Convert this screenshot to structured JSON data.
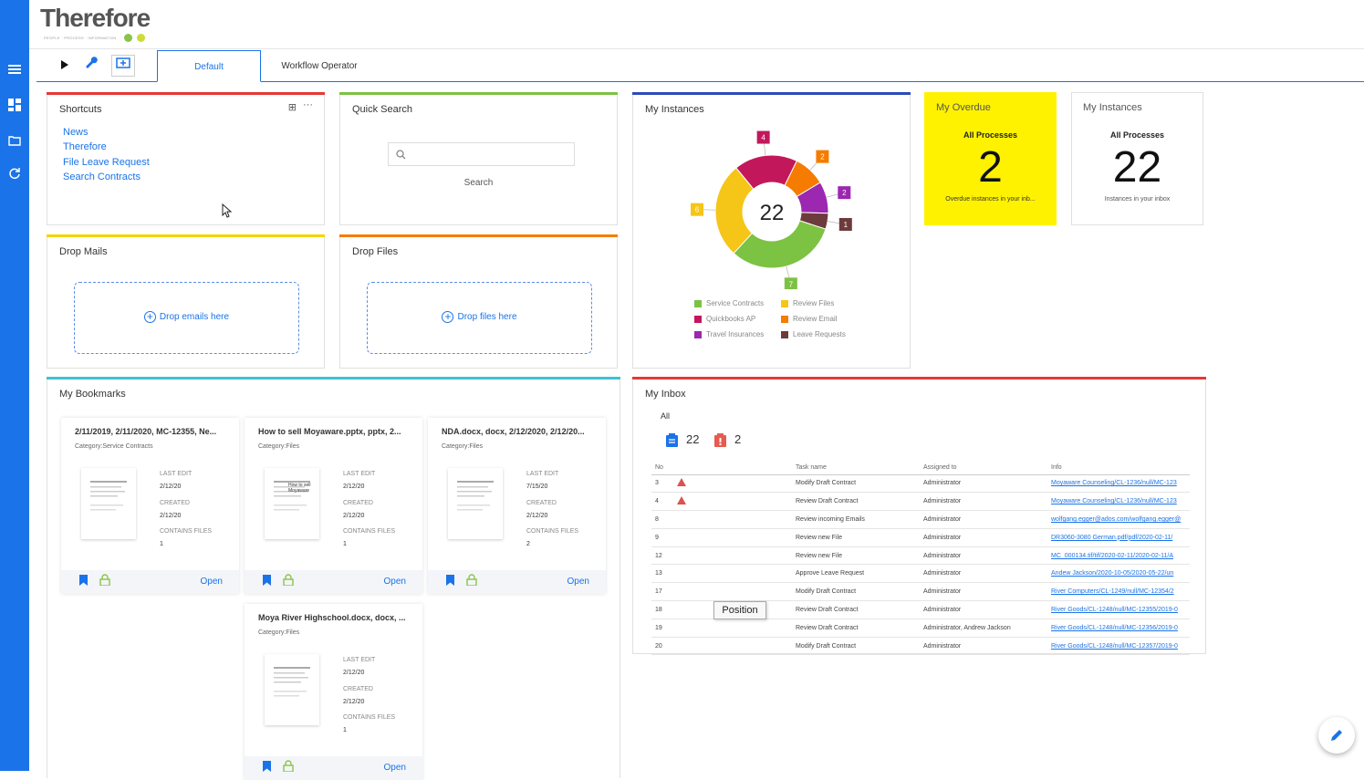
{
  "app": {
    "logo_text": "Therefore",
    "logo_tagline": "PEOPLE · PROCESS · INFORMATION"
  },
  "rail": {
    "icons": [
      "menu-icon",
      "dashboard-icon",
      "folder-icon",
      "refresh-icon"
    ]
  },
  "toolbar": {
    "icons": [
      "play-icon",
      "wrench-icon",
      "add-screen-icon"
    ],
    "tabs": [
      {
        "label": "Default",
        "active": true
      },
      {
        "label": "Workflow Operator",
        "active": false
      }
    ]
  },
  "shortcuts": {
    "title": "Shortcuts",
    "links": [
      "News",
      "Therefore",
      "File Leave Request",
      "Search Contracts"
    ],
    "accent": "#e53935"
  },
  "quick_search": {
    "title": "Quick Search",
    "placeholder": "",
    "button_label": "Search",
    "accent": "#7cc243"
  },
  "my_instances_chart": {
    "title": "My Instances",
    "total": "22",
    "accent": "#2b4bb8"
  },
  "chart_data": {
    "type": "pie",
    "center_label": "22",
    "series": [
      {
        "name": "Service Contracts",
        "value": 7,
        "color": "#7cc243"
      },
      {
        "name": "Review Files",
        "value": 6,
        "color": "#f5c518"
      },
      {
        "name": "Quickbooks AP",
        "value": 4,
        "color": "#c2185b"
      },
      {
        "name": "Review Email",
        "value": 2,
        "color": "#f57c00"
      },
      {
        "name": "Travel Insurances",
        "value": 2,
        "color": "#9c27b0"
      },
      {
        "name": "Leave Requests",
        "value": 1,
        "color": "#6d3b3b"
      }
    ]
  },
  "my_overdue": {
    "title": "My Overdue",
    "subtitle": "All Processes",
    "count": "2",
    "caption": "Overdue instances in your inb...",
    "bg": "#fff200"
  },
  "my_instances_tile": {
    "title": "My Instances",
    "subtitle": "All Processes",
    "count": "22",
    "caption": "Instances in your inbox"
  },
  "drop_mails": {
    "title": "Drop Mails",
    "label": "Drop emails here",
    "accent": "#f5d300"
  },
  "drop_files": {
    "title": "Drop Files",
    "label": "Drop files here",
    "accent": "#f57c00"
  },
  "bookmarks": {
    "title": "My Bookmarks",
    "accent": "#3ec1d3",
    "meta_labels": {
      "last_edit": "LAST EDIT",
      "created": "CREATED",
      "contains": "CONTAINS FILES"
    },
    "open_label": "Open",
    "items": [
      {
        "title": "2/11/2019, 2/11/2020, MC-12355, Ne...",
        "category": "Category:Service Contracts",
        "last_edit": "2/12/20",
        "created": "2/12/20",
        "files": "1"
      },
      {
        "title": "How to sell Moyaware.pptx, pptx, 2...",
        "category": "Category:Files",
        "last_edit": "2/12/20",
        "created": "2/12/20",
        "files": "1",
        "thumb_text": "How to sell Moyaware"
      },
      {
        "title": "NDA.docx, docx, 2/12/2020, 2/12/20...",
        "category": "Category:Files",
        "last_edit": "7/15/20",
        "created": "2/12/20",
        "files": "2"
      },
      {
        "title": "Moya River Highschool.docx, docx, ...",
        "category": "Category:Files",
        "last_edit": "2/12/20",
        "created": "2/12/20",
        "files": "1"
      }
    ]
  },
  "inbox": {
    "title": "My Inbox",
    "accent": "#e53935",
    "filter": "All",
    "task_count": "22",
    "overdue_count": "2",
    "columns": [
      "No",
      "",
      "Task name",
      "Assigned to",
      "Info"
    ],
    "rows": [
      {
        "no": "3",
        "warn": true,
        "task": "Modify Draft Contract",
        "assigned": "Administrator",
        "info": "Moyaware Counseling/CL-1236/null/MC-123"
      },
      {
        "no": "4",
        "warn": true,
        "task": "Review Draft Contract",
        "assigned": "Administrator",
        "info": "Moyaware Counseling/CL-1236/null/MC-123"
      },
      {
        "no": "8",
        "warn": false,
        "task": "Review incoming Emails",
        "assigned": "Administrator",
        "info": "wolfgang.egger@ados.com/wolfgang.egger@"
      },
      {
        "no": "9",
        "warn": false,
        "task": "Review new File",
        "assigned": "Administrator",
        "info": "DR3060-3080 German.pdf/pdf/2020-02-11/"
      },
      {
        "no": "12",
        "warn": false,
        "task": "Review new File",
        "assigned": "Administrator",
        "info": "MC_000134.tif/tif/2020-02-11/2020-02-11/A"
      },
      {
        "no": "13",
        "warn": false,
        "task": "Approve Leave Request",
        "assigned": "Administrator",
        "info": "Andew Jackson/2020-10-05/2020-05-22/un"
      },
      {
        "no": "17",
        "warn": false,
        "task": "Modify Draft Contract",
        "assigned": "Administrator",
        "info": "River Computers/CL-1249/null/MC-12354/2"
      },
      {
        "no": "18",
        "warn": false,
        "task": "Review Draft Contract",
        "assigned": "Administrator",
        "info": "River Goods/CL-1248/null/MC-12355/2019-0"
      },
      {
        "no": "19",
        "warn": false,
        "task": "Review Draft Contract",
        "assigned": "Administrator, Andrew Jackson",
        "info": "River Goods/CL-1248/null/MC-12356/2019-0"
      },
      {
        "no": "20",
        "warn": false,
        "task": "Modify Draft Contract",
        "assigned": "Administrator",
        "info": "River Goods/CL-1248/null/MC-12357/2019-0"
      }
    ]
  },
  "tooltip": {
    "text": "Position"
  }
}
